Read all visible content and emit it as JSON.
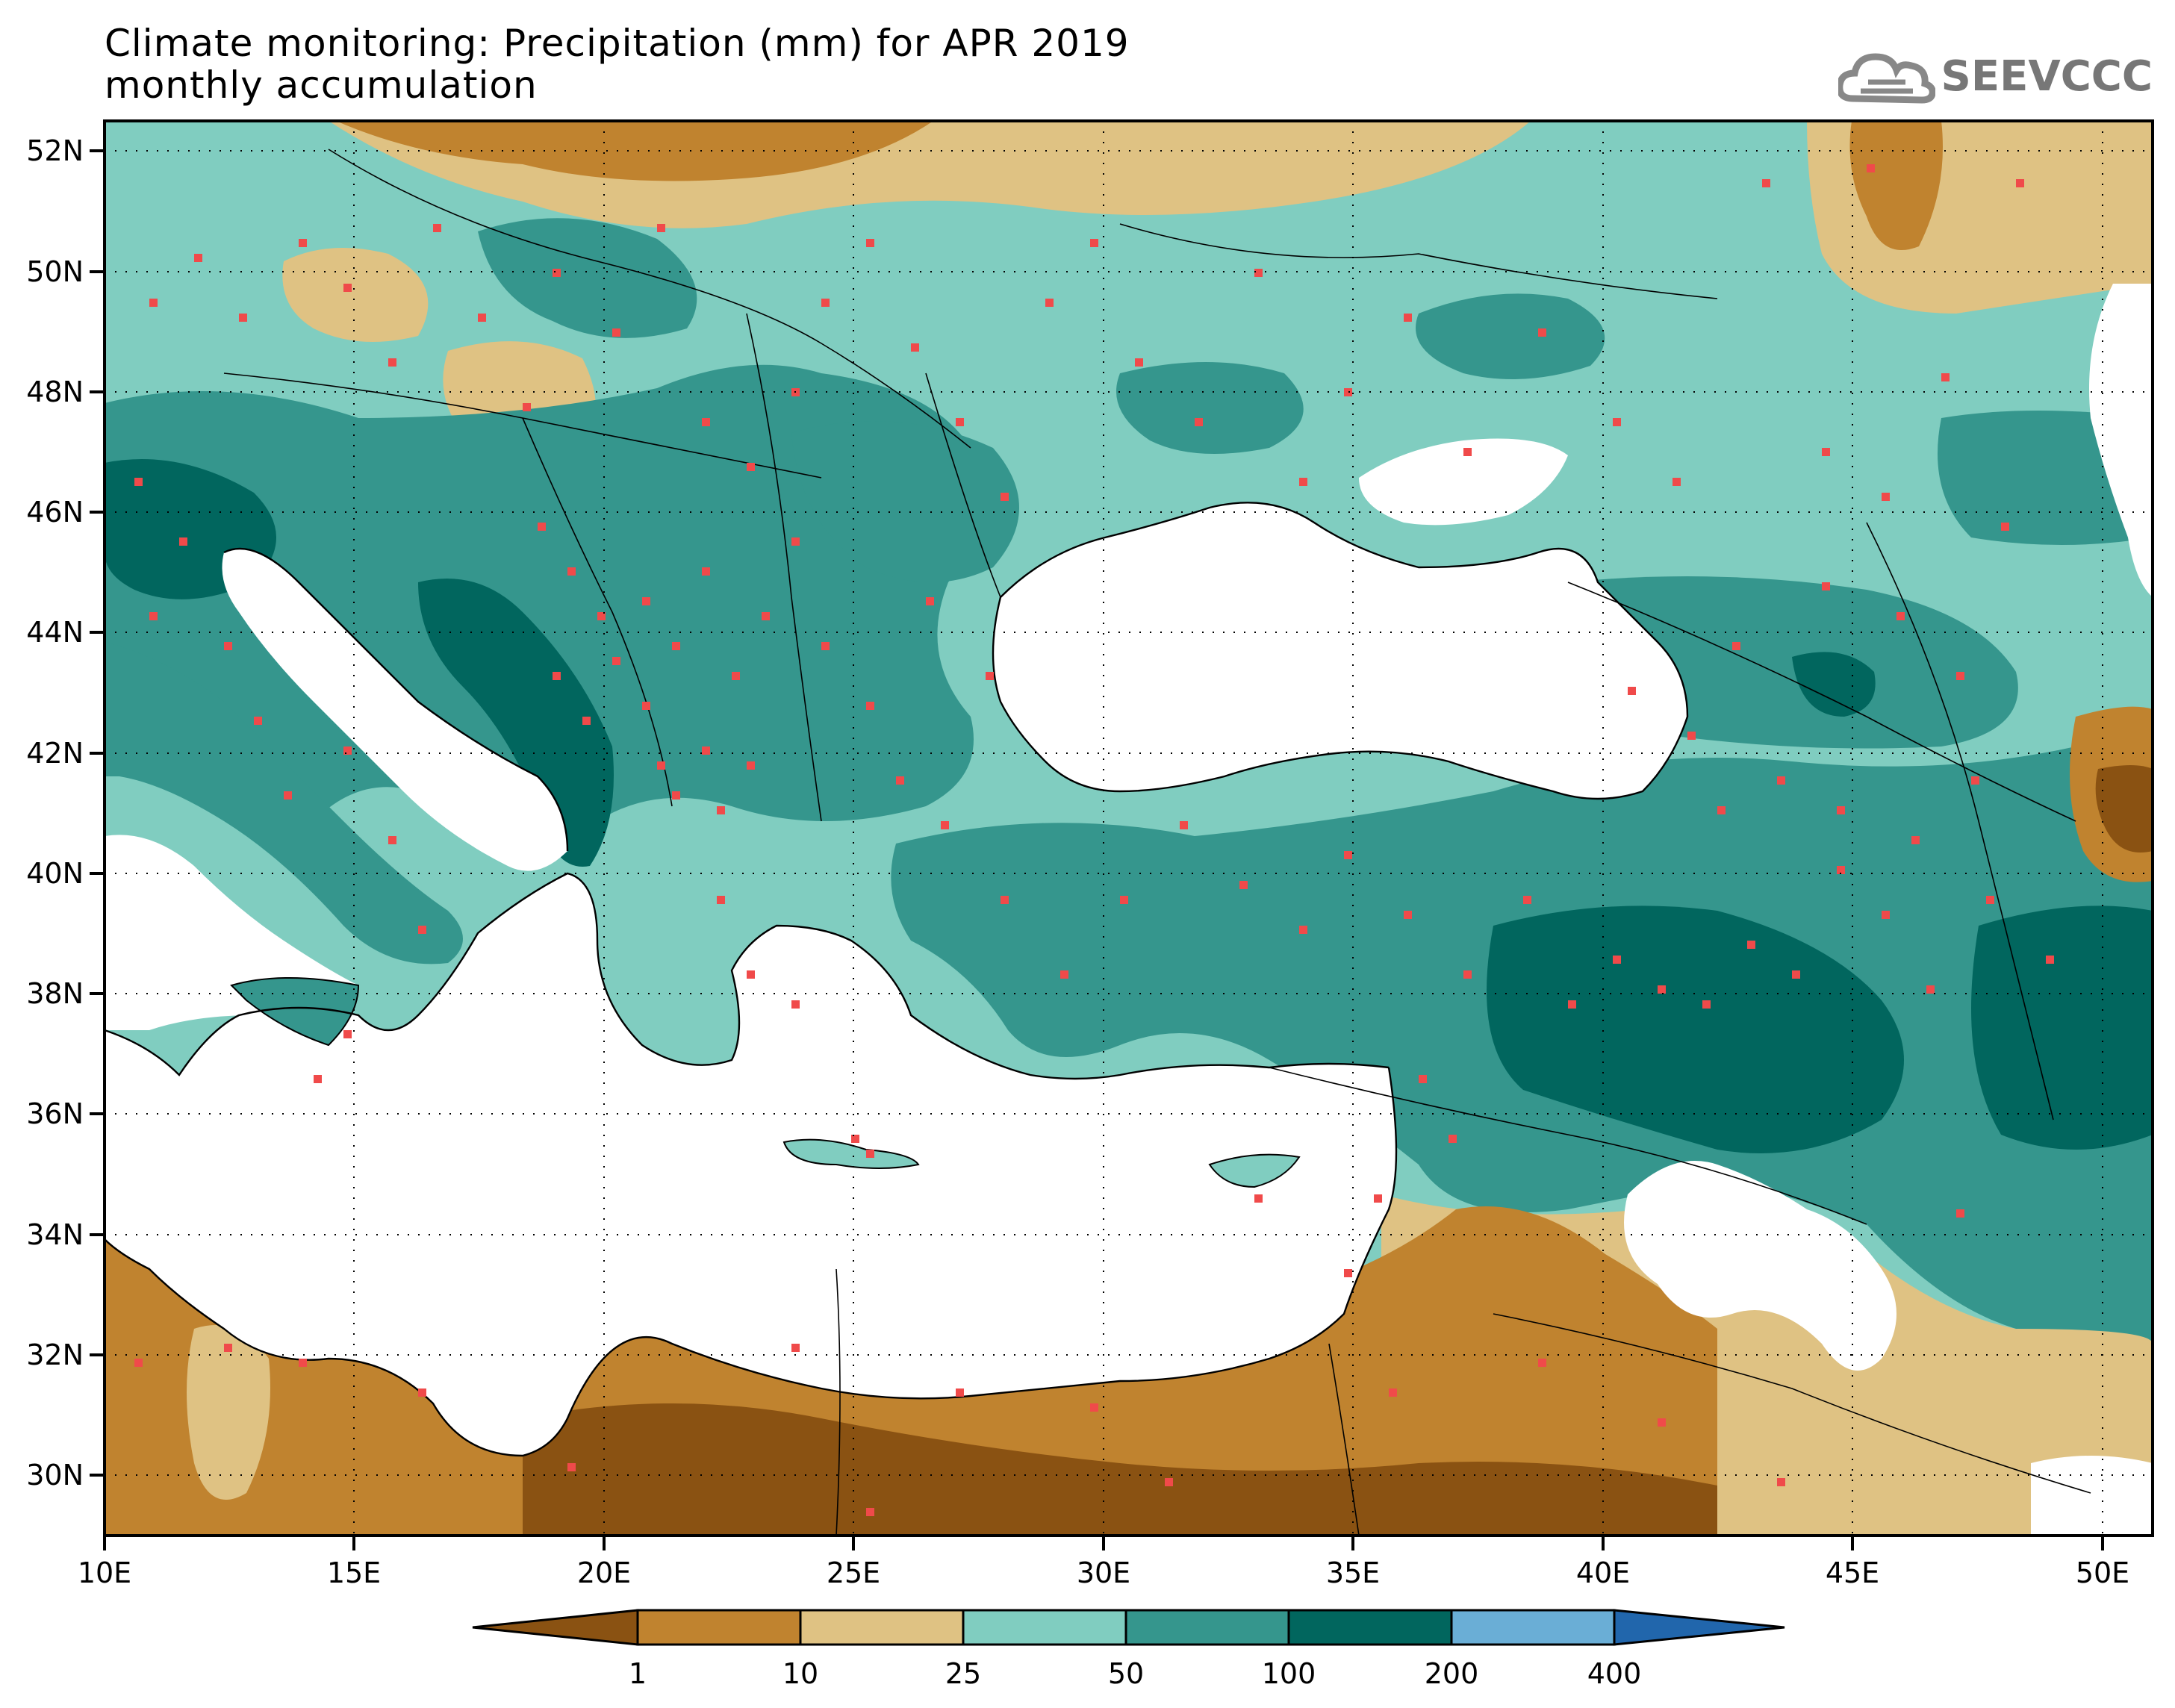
{
  "header": {
    "title_line1": "Climate monitoring: Precipitation (mm) for APR 2019",
    "title_line2": "monthly accumulation",
    "logo_text": "SEEVCCC",
    "logo_icon": "cloud-logo-icon"
  },
  "map": {
    "region": "Southeast Europe / Eastern Mediterranean",
    "lon_range": [
      10,
      51
    ],
    "lat_range": [
      29,
      52.5
    ],
    "lon_ticks": [
      "10E",
      "15E",
      "20E",
      "25E",
      "30E",
      "35E",
      "40E",
      "45E",
      "50E"
    ],
    "lat_ticks": [
      "52N",
      "50N",
      "48N",
      "46N",
      "44N",
      "42N",
      "40N",
      "38N",
      "36N",
      "34N",
      "32N",
      "30N"
    ],
    "gridlines": "dotted",
    "station_marker_color": "#f04a4a",
    "sea_color": "#ffffff"
  },
  "legend": {
    "boundaries": [
      "1",
      "10",
      "25",
      "50",
      "100",
      "200",
      "400"
    ],
    "colors": [
      "#8a5212",
      "#c0832f",
      "#dfc283",
      "#80cdc0",
      "#35968d",
      "#01665e",
      "#6aaed6",
      "#2166ac"
    ]
  }
}
